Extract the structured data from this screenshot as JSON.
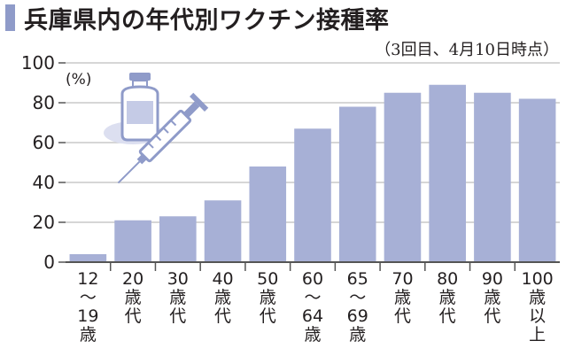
{
  "title": "兵庫県内の年代別ワクチン接種率",
  "subtitle": "（3回目、4月10日時点）",
  "chart_data": {
    "type": "bar",
    "unit_label": "(%)",
    "ylim": [
      0,
      100
    ],
    "yticks": [
      0,
      20,
      40,
      60,
      80,
      100
    ],
    "grid": true,
    "categories": [
      "12\n～\n19\n歳",
      "20\n歳\n代",
      "30\n歳\n代",
      "40\n歳\n代",
      "50\n歳\n代",
      "60\n～\n64\n歳",
      "65\n～\n69\n歳",
      "70\n歳\n代",
      "80\n歳\n代",
      "90\n歳\n代",
      "100\n歳\n以\n上"
    ],
    "values": [
      4,
      21,
      23,
      31,
      48,
      67,
      78,
      85,
      89,
      85,
      82
    ],
    "bar_color": "#a7b0d6",
    "grid_color": "#c9c9c9",
    "axis_color": "#555555"
  },
  "illustration": {
    "icon": "vaccine-vial-and-syringe-icon"
  }
}
